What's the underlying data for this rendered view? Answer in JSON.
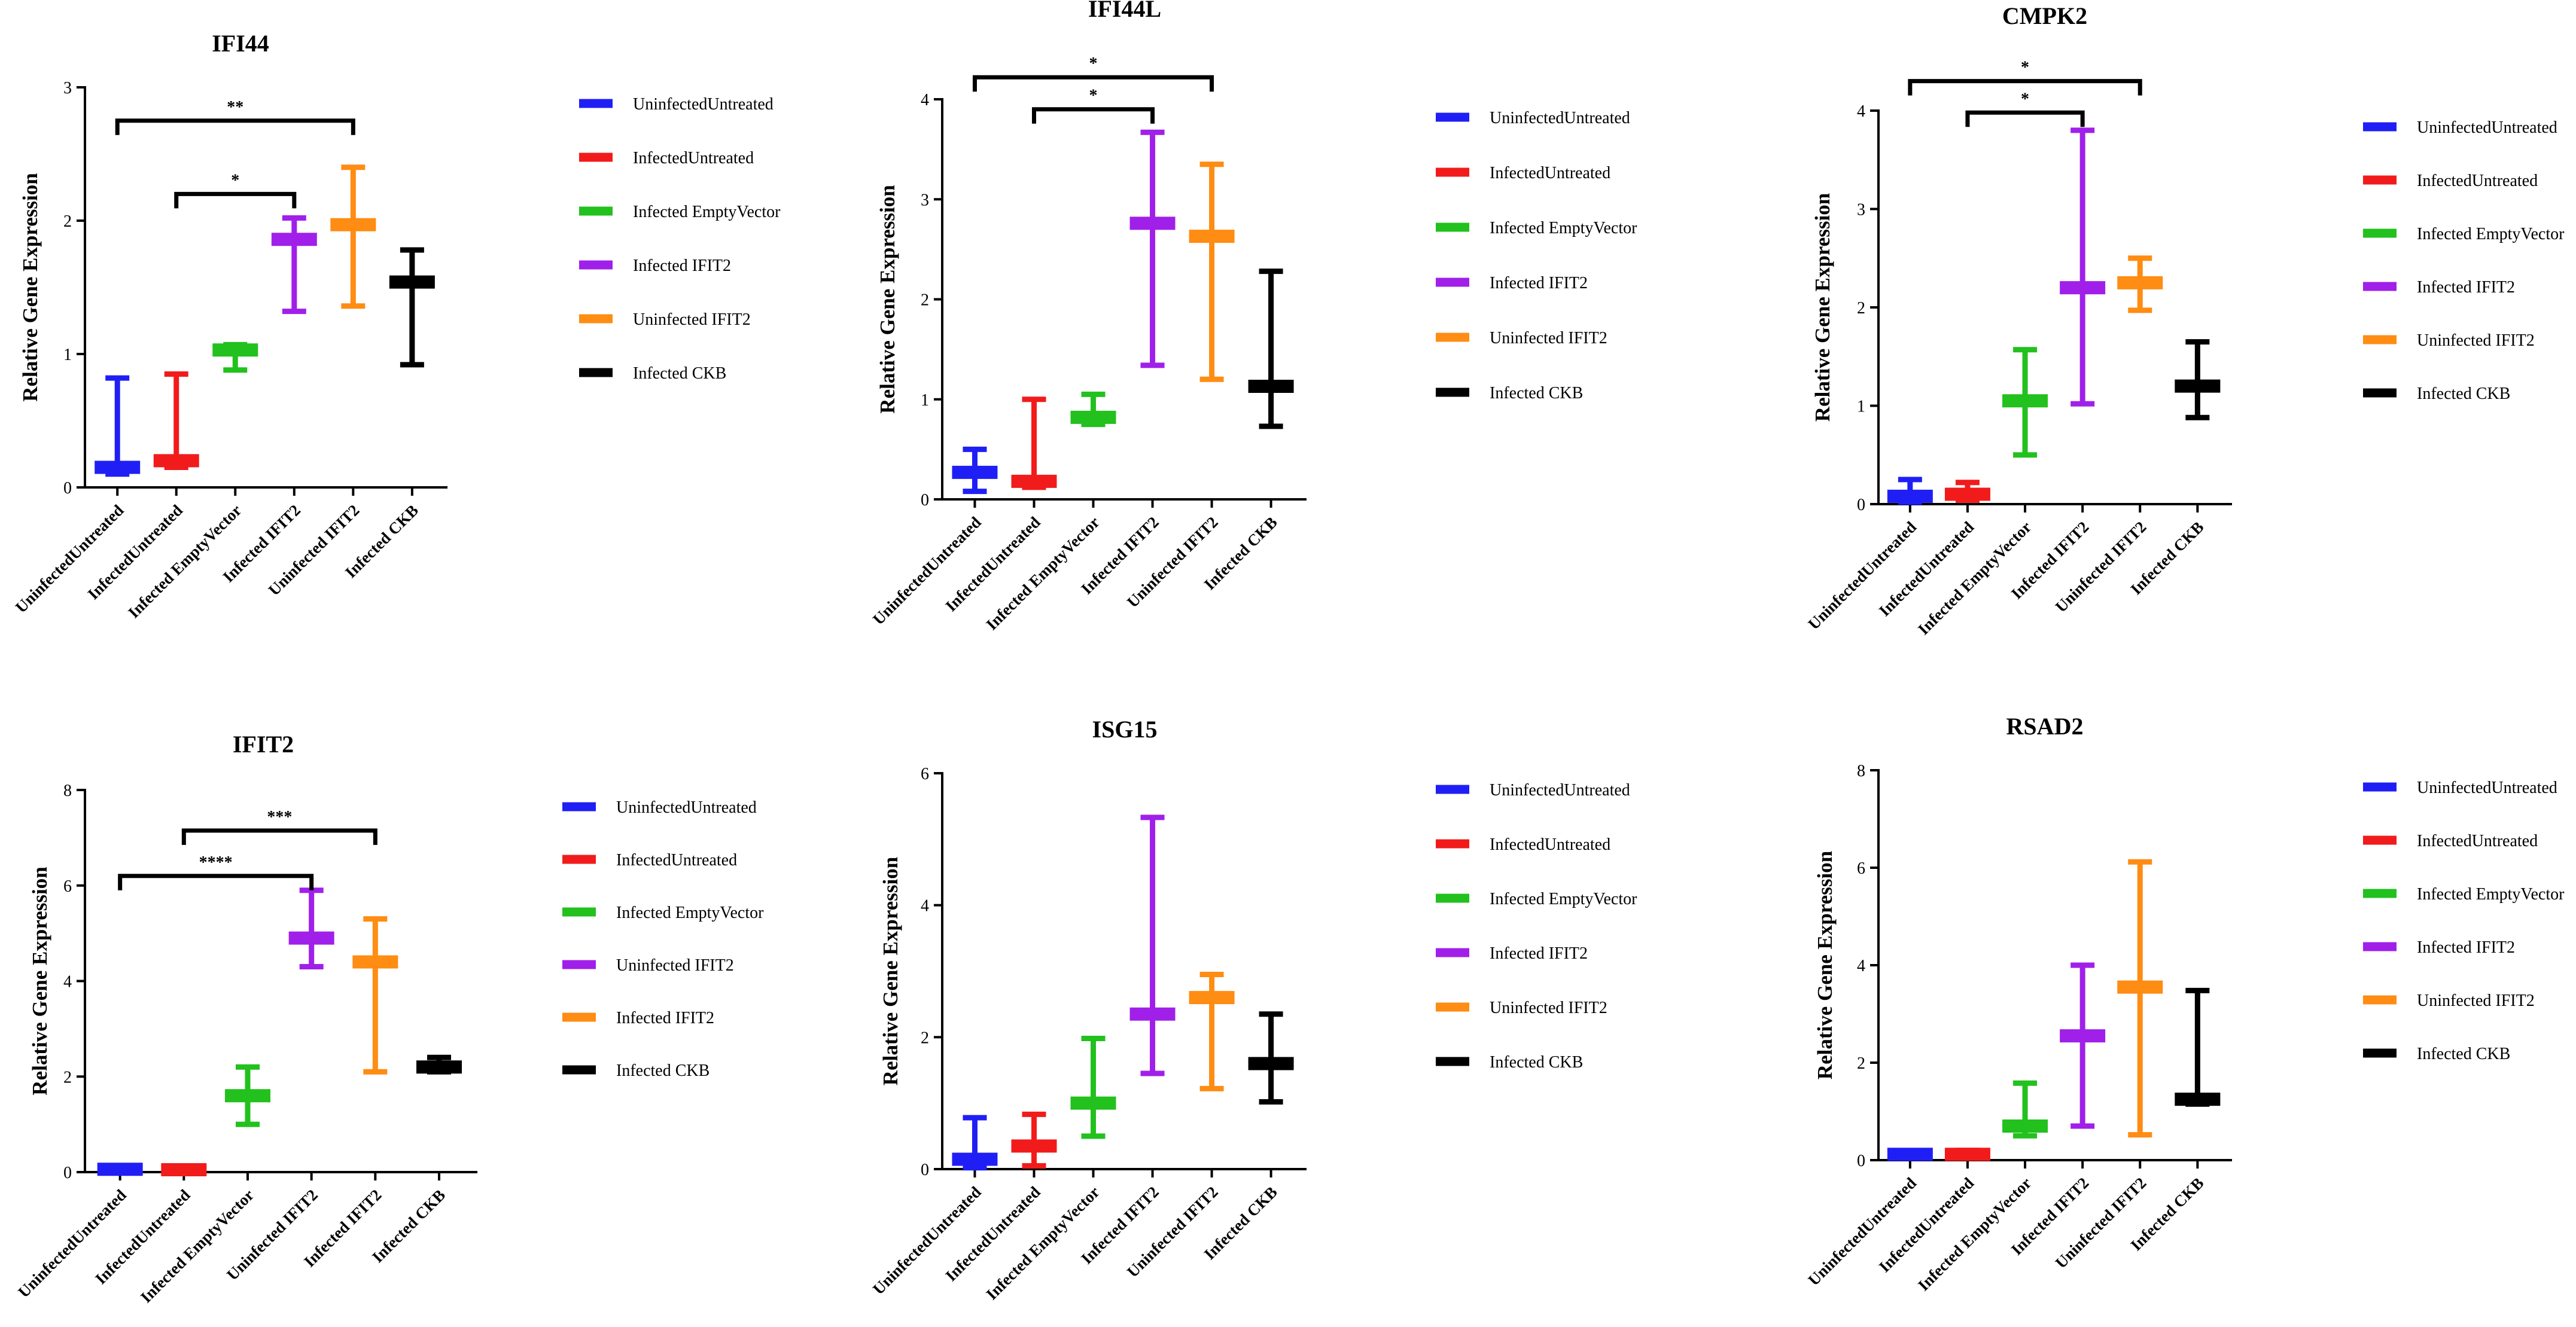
{
  "figure": {
    "description_colors": {
      "blue": "#1f1ff5",
      "red": "#f21b1b",
      "green": "#22c11d",
      "purple": "#a020ea",
      "orange": "#ff8c13",
      "black": "#000000"
    }
  },
  "chart_data": [
    {
      "type": "scatter",
      "title": "IFI44",
      "ylabel": "Relative Gene Expression",
      "xlabel": "",
      "ylim": [
        0,
        3
      ],
      "yticks": [
        0,
        1,
        2,
        3
      ],
      "ytick_labels": [
        "0",
        "1",
        "2",
        "3"
      ],
      "categories": [
        "UninfectedUntreated",
        "InfectedUntreated",
        "Infected EmptyVector",
        "Infected IFIT2",
        "Uninfected IFIT2",
        "Infected CKB"
      ],
      "colors": [
        "#1f1ff5",
        "#f21b1b",
        "#22c11d",
        "#a020ea",
        "#ff8c13",
        "#000000"
      ],
      "mean": [
        0.15,
        0.2,
        1.03,
        1.86,
        1.97,
        1.54
      ],
      "err_low": [
        0.1,
        0.15,
        0.88,
        1.32,
        1.36,
        0.92
      ],
      "err_high": [
        0.82,
        0.85,
        1.07,
        2.02,
        2.4,
        1.78
      ],
      "significance": [
        {
          "from": 1,
          "to": 3,
          "y": 2.2,
          "label": "*"
        },
        {
          "from": 0,
          "to": 4,
          "y": 2.75,
          "label": "**"
        }
      ],
      "legend": [
        "UninfectedUntreated",
        "InfectedUntreated",
        "Infected EmptyVector",
        "Infected IFIT2",
        "Uninfected IFIT2",
        "Infected CKB"
      ]
    },
    {
      "type": "scatter",
      "title": "IFI44L",
      "ylabel": "Relative Gene Expression",
      "xlabel": "",
      "ylim": [
        0,
        4
      ],
      "yticks": [
        0,
        1,
        2,
        3,
        4
      ],
      "ytick_labels": [
        "0",
        "1",
        "2",
        "3",
        "4"
      ],
      "categories": [
        "UninfectedUntreated",
        "InfectedUntreated",
        "Infected EmptyVector",
        "Infected IFIT2",
        "Uninfected IFIT2",
        "Infected CKB"
      ],
      "colors": [
        "#1f1ff5",
        "#f21b1b",
        "#22c11d",
        "#a020ea",
        "#ff8c13",
        "#000000"
      ],
      "mean": [
        0.27,
        0.18,
        0.82,
        2.76,
        2.63,
        1.13
      ],
      "err_low": [
        0.08,
        0.12,
        0.75,
        1.34,
        1.2,
        0.73
      ],
      "err_high": [
        0.5,
        1.0,
        1.05,
        3.67,
        3.35,
        2.28
      ],
      "significance": [
        {
          "from": 1,
          "to": 3,
          "y": 3.9,
          "label": "*"
        },
        {
          "from": 0,
          "to": 4,
          "y": 4.22,
          "label": "*"
        }
      ],
      "legend": [
        "UninfectedUntreated",
        "InfectedUntreated",
        "Infected EmptyVector",
        "Infected IFIT2",
        "Uninfected IFIT2",
        "Infected CKB"
      ]
    },
    {
      "type": "scatter",
      "title": "CMPK2",
      "ylabel": "Relative Gene Expression",
      "xlabel": "",
      "ylim": [
        0,
        4
      ],
      "yticks": [
        0,
        1,
        2,
        3,
        4
      ],
      "ytick_labels": [
        "0",
        "1",
        "2",
        "3",
        "4"
      ],
      "categories": [
        "UninfectedUntreated",
        "InfectedUntreated",
        "Infected EmptyVector",
        "Infected IFIT2",
        "Uninfected IFIT2",
        "Infected CKB"
      ],
      "colors": [
        "#1f1ff5",
        "#f21b1b",
        "#22c11d",
        "#a020ea",
        "#ff8c13",
        "#000000"
      ],
      "mean": [
        0.08,
        0.1,
        1.05,
        2.2,
        2.25,
        1.2
      ],
      "err_low": [
        0.02,
        0.04,
        0.5,
        1.02,
        1.97,
        0.88
      ],
      "err_high": [
        0.25,
        0.22,
        1.57,
        3.8,
        2.5,
        1.65
      ],
      "significance": [
        {
          "from": 1,
          "to": 3,
          "y": 3.98,
          "label": "*"
        },
        {
          "from": 0,
          "to": 4,
          "y": 4.3,
          "label": "*"
        }
      ],
      "legend": [
        "UninfectedUntreated",
        "InfectedUntreated",
        "Infected EmptyVector",
        "Infected IFIT2",
        "Uninfected IFIT2",
        "Infected CKB"
      ]
    },
    {
      "type": "scatter",
      "title": "IFIT2",
      "ylabel": "Relative Gene Expression",
      "xlabel": "",
      "ylim": [
        0,
        8
      ],
      "yticks": [
        0,
        2,
        4,
        6,
        8
      ],
      "ytick_labels": [
        "0",
        "2",
        "4",
        "6",
        "8"
      ],
      "categories": [
        "UninfectedUntreated",
        "InfectedUntreated",
        "Infected EmptyVector",
        "Uninfected IFIT2",
        "Infected IFIT2",
        "Infected CKB"
      ],
      "colors": [
        "#1f1ff5",
        "#f21b1b",
        "#22c11d",
        "#a020ea",
        "#ff8c13",
        "#000000"
      ],
      "mean": [
        0.06,
        0.05,
        1.6,
        4.9,
        4.4,
        2.2
      ],
      "err_low": [
        0.02,
        0.02,
        1.0,
        4.3,
        2.1,
        2.1
      ],
      "err_high": [
        0.1,
        0.08,
        2.2,
        5.9,
        5.3,
        2.4
      ],
      "significance": [
        {
          "from": 0,
          "to": 3,
          "y": 6.2,
          "label": "****"
        },
        {
          "from": 1,
          "to": 4,
          "y": 7.15,
          "label": "***"
        }
      ],
      "legend": [
        "UninfectedUntreated",
        "InfectedUntreated",
        "Infected EmptyVector",
        "Uninfected IFIT2",
        "Infected IFIT2",
        "Infected CKB"
      ]
    },
    {
      "type": "scatter",
      "title": "ISG15",
      "ylabel": "Relative Gene Expression",
      "xlabel": "",
      "ylim": [
        0,
        6
      ],
      "yticks": [
        0,
        2,
        4,
        6
      ],
      "ytick_labels": [
        "0",
        "2",
        "4",
        "6"
      ],
      "categories": [
        "UninfectedUntreated",
        "InfectedUntreated",
        "Infected EmptyVector",
        "Infected IFIT2",
        "Uninfected IFIT2",
        "Infected CKB"
      ],
      "colors": [
        "#1f1ff5",
        "#f21b1b",
        "#22c11d",
        "#a020ea",
        "#ff8c13",
        "#000000"
      ],
      "mean": [
        0.15,
        0.35,
        1.0,
        2.35,
        2.6,
        1.6
      ],
      "err_low": [
        0.02,
        0.05,
        0.5,
        1.45,
        1.22,
        1.02
      ],
      "err_high": [
        0.78,
        0.83,
        1.98,
        5.33,
        2.95,
        2.35
      ],
      "significance": [],
      "legend": [
        "UninfectedUntreated",
        "InfectedUntreated",
        "Infected EmptyVector",
        "Infected IFIT2",
        "Uninfected IFIT2",
        "Infected CKB"
      ]
    },
    {
      "type": "scatter",
      "title": "RSAD2",
      "ylabel": "Relative Gene Expression",
      "xlabel": "",
      "ylim": [
        0,
        8
      ],
      "yticks": [
        0,
        2,
        4,
        6,
        8
      ],
      "ytick_labels": [
        "0",
        "2",
        "4",
        "6",
        "8"
      ],
      "categories": [
        "UninfectedUntreated",
        "InfectedUntreated",
        "Infected EmptyVector",
        "Infected IFIT2",
        "Uninfected IFIT2",
        "Infected CKB"
      ],
      "colors": [
        "#1f1ff5",
        "#f21b1b",
        "#22c11d",
        "#a020ea",
        "#ff8c13",
        "#000000"
      ],
      "mean": [
        0.12,
        0.12,
        0.7,
        2.55,
        3.55,
        1.25
      ],
      "err_low": [
        0.04,
        0.05,
        0.5,
        0.7,
        0.52,
        1.15
      ],
      "err_high": [
        0.18,
        0.2,
        1.58,
        4.0,
        6.12,
        3.48
      ],
      "significance": [],
      "legend": [
        "UninfectedUntreated",
        "InfectedUntreated",
        "Infected EmptyVector",
        "Infected IFIT2",
        "Uninfected IFIT2",
        "Infected CKB"
      ]
    }
  ]
}
